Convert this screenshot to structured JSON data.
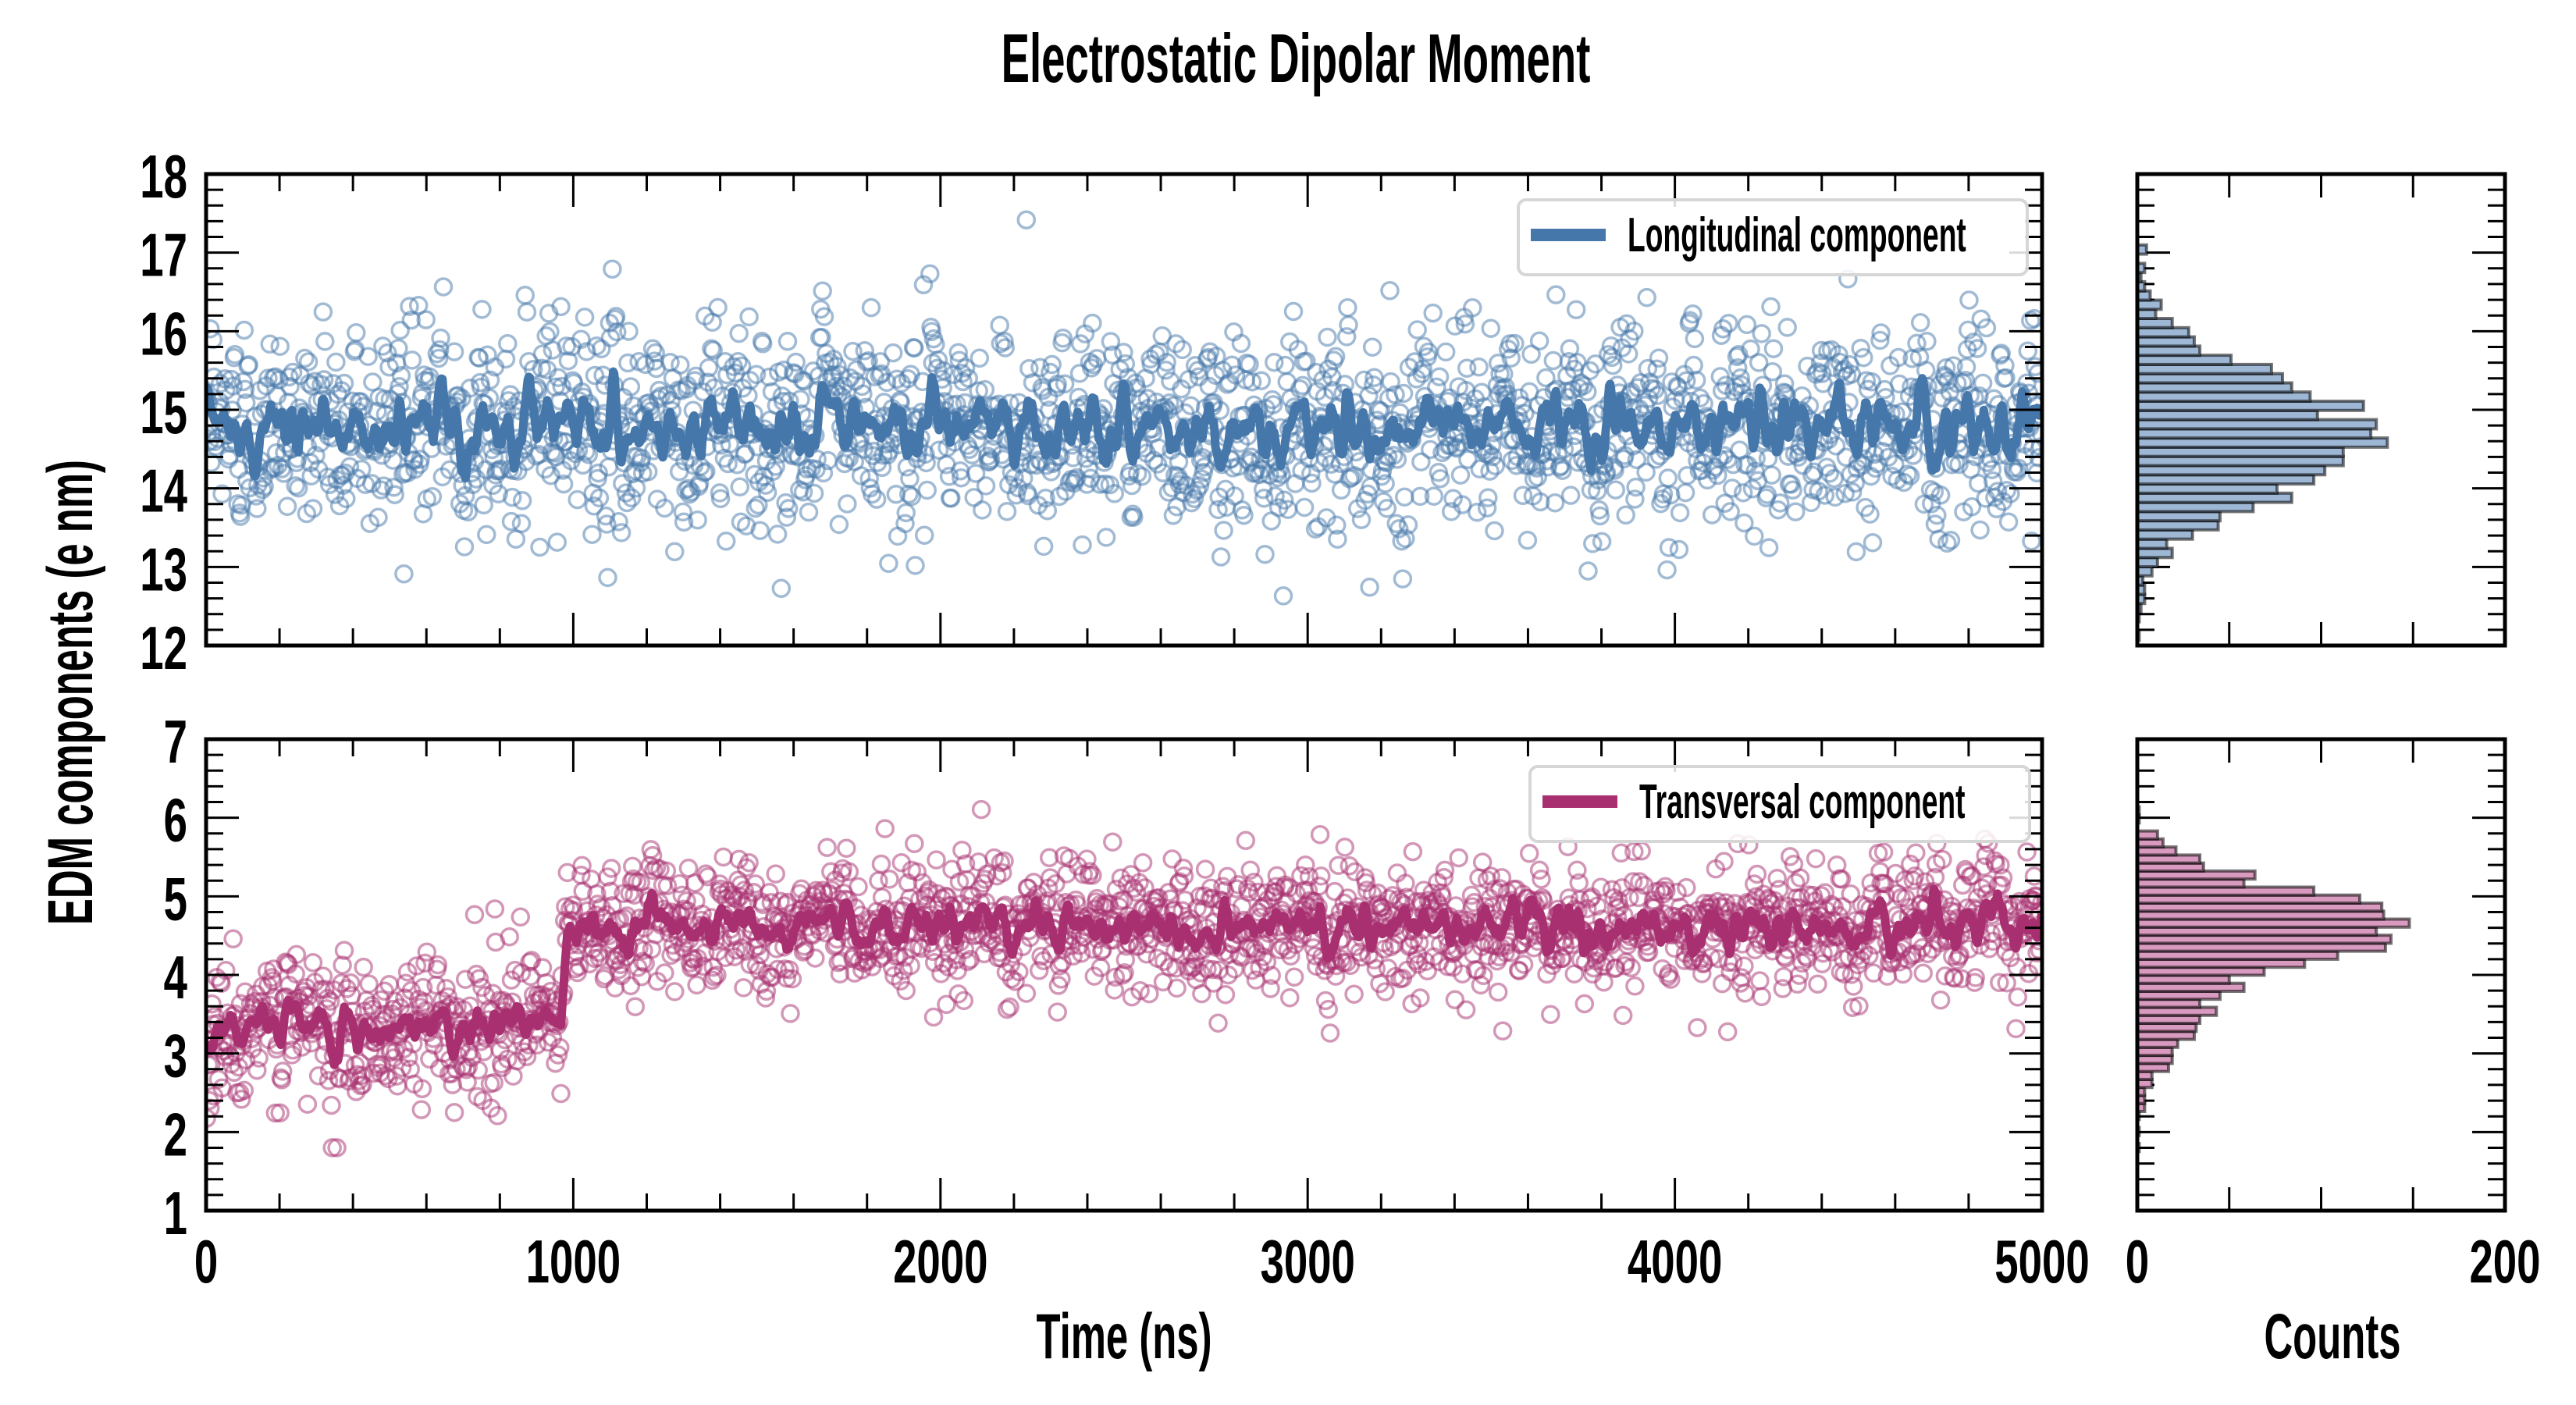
{
  "chart_data": {
    "type": "scatter",
    "title": "Electrostatic Dipolar Moment",
    "ylabel": "EDM components (e nm)",
    "xlabel": "Time (ns)",
    "hist_xlabel": "Counts",
    "x_ticks": [
      "0",
      "1000",
      "2000",
      "3000",
      "4000",
      "5000"
    ],
    "xlim": [
      0,
      5000
    ],
    "x_minor_step": 200,
    "hist_ticks": [
      "0",
      "200"
    ],
    "hist_xlim": [
      0,
      200
    ],
    "hist_minor_step": 50,
    "grid": false,
    "panels": [
      {
        "id": "longitudinal",
        "legend": "Longitudinal component",
        "legend_position": "top-right",
        "color": "#4577aa",
        "hist_fill": "#9db7d4",
        "ylim": [
          12,
          18
        ],
        "y_ticks": [
          "12",
          "13",
          "14",
          "15",
          "16",
          "17",
          "18"
        ],
        "y_minor_step": 0.2,
        "series": {
          "n_points": 2000,
          "segments": [
            {
              "x_start": 0,
              "x_end": 5000,
              "mean": 14.8,
              "std": 0.75
            }
          ],
          "running_mean_window_ns": 25,
          "running_mean_amplitude": 0.35
        },
        "histogram": {
          "bin_start": 11.95,
          "bin_width": 0.117,
          "counts": [
            0,
            1,
            0,
            1,
            2,
            4,
            4,
            3,
            8,
            11,
            19,
            16,
            30,
            44,
            45,
            63,
            84,
            76,
            96,
            102,
            112,
            112,
            136,
            127,
            130,
            98,
            123,
            94,
            84,
            79,
            73,
            51,
            34,
            31,
            28,
            19,
            10,
            13,
            7,
            4,
            2,
            4,
            0,
            5
          ]
        }
      },
      {
        "id": "transversal",
        "legend": "Transversal component",
        "legend_position": "top-right",
        "color": "#a83070",
        "hist_fill": "#d99abf",
        "ylim": [
          1,
          7
        ],
        "y_ticks": [
          "1",
          "2",
          "3",
          "4",
          "5",
          "6",
          "7"
        ],
        "y_minor_step": 0.2,
        "series": {
          "n_points": 2000,
          "segments": [
            {
              "x_start": 0,
              "x_end": 975,
              "mean": 3.35,
              "std": 0.55
            },
            {
              "x_start": 975,
              "x_end": 5000,
              "mean": 4.62,
              "std": 0.45
            }
          ],
          "running_mean_window_ns": 25,
          "running_mean_amplitude": 0.25
        },
        "histogram": {
          "bin_start": 1.65,
          "bin_width": 0.102,
          "counts": [
            0,
            1,
            0,
            1,
            0,
            1,
            4,
            4,
            4,
            8,
            8,
            17,
            19,
            19,
            22,
            31,
            32,
            34,
            43,
            34,
            45,
            58,
            50,
            69,
            91,
            109,
            135,
            138,
            130,
            148,
            134,
            133,
            121,
            96,
            58,
            64,
            36,
            34,
            21,
            14,
            11,
            0,
            1,
            1
          ]
        }
      }
    ]
  }
}
